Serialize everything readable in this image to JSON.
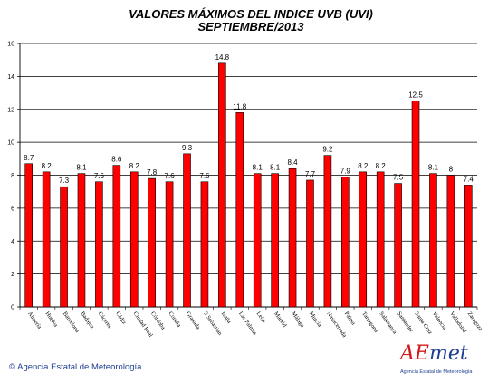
{
  "chart_data": {
    "type": "bar",
    "title": "VALORES MÁXIMOS DEL INDICE UVB (UVI)",
    "subtitle": "SEPTIEMBRE/2013",
    "xlabel": "",
    "ylabel": "",
    "ylim": [
      0,
      16
    ],
    "yticks": [
      "0",
      "2",
      "4",
      "6",
      "8",
      "10",
      "12",
      "14",
      "16"
    ],
    "grid": true,
    "bar_color": "#ff0000",
    "categories": [
      "Almería",
      "Huelva",
      "Barcelona",
      "Badajoz",
      "Cáceres",
      "Cádiz",
      "Ciudad Real",
      "Córdoba",
      "Coruña",
      "Granada",
      "S.Sebastián",
      "Izaña",
      "Las Palmas",
      "León",
      "Madrid",
      "Málaga",
      "Murcia",
      "Navacerrada",
      "Palma",
      "Tarragona",
      "Salamanca",
      "Santander",
      "Santa Cruz",
      "Valencia",
      "Valladolid",
      "Zaragoza"
    ],
    "values": [
      8.7,
      8.2,
      7.3,
      8.1,
      7.6,
      8.6,
      8.2,
      7.8,
      7.6,
      9.3,
      7.6,
      14.8,
      11.8,
      8.1,
      8.1,
      8.4,
      7.7,
      9.2,
      7.9,
      8.2,
      8.2,
      7.5,
      12.5,
      8.1,
      8,
      7.4
    ],
    "value_labels": [
      "8.7",
      "8.2",
      "7.3",
      "8.1",
      "7.6",
      "8.6",
      "8.2",
      "7.8",
      "7.6",
      "9.3",
      "7.6",
      "14.8",
      "11.8",
      "8.1",
      "8.1",
      "8.4",
      "7.7",
      "9.2",
      "7.9",
      "8.2",
      "8.2",
      "7.5",
      "12.5",
      "8.1",
      "8",
      "7.4"
    ]
  },
  "footer": {
    "copyright": "© Agencia Estatal de Meteorología"
  },
  "logo": {
    "word_a": "AE",
    "word_b": "met",
    "subtitle": "Agencia Estatal de Meteorología"
  }
}
